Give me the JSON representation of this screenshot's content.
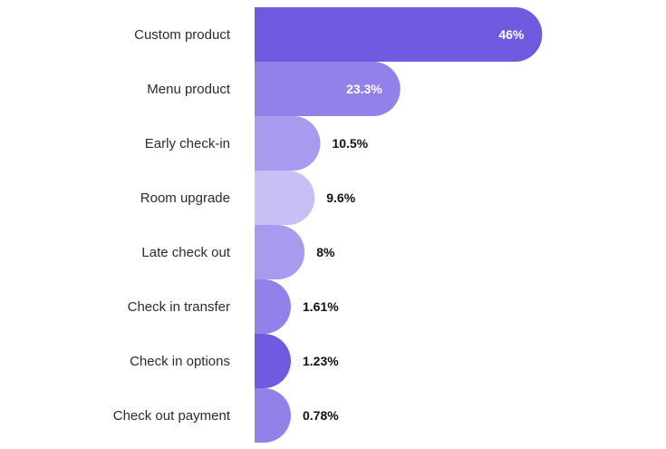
{
  "chart_data": {
    "type": "bar",
    "orientation": "horizontal",
    "title": "",
    "xlabel": "",
    "ylabel": "",
    "categories": [
      "Custom product",
      "Menu product",
      "Early check-in",
      "Room upgrade",
      "Late check out",
      "Check in transfer",
      "Check in options",
      "Check out payment"
    ],
    "values": [
      46,
      23.3,
      10.5,
      9.6,
      8,
      1.61,
      1.23,
      0.78
    ],
    "value_labels": [
      "46%",
      "23.3%",
      "10.5%",
      "9.6%",
      "8%",
      "1.61%",
      "1.23%",
      "0.78%"
    ],
    "bar_colors": [
      "#6f5ae0",
      "#9380e8",
      "#a89aee",
      "#c8bff5",
      "#a89aee",
      "#9380e8",
      "#6f5ae0",
      "#9380e8"
    ],
    "label_inside_color": "#ffffff",
    "label_outside_color": "#111111",
    "grid": false,
    "legend": "none"
  }
}
